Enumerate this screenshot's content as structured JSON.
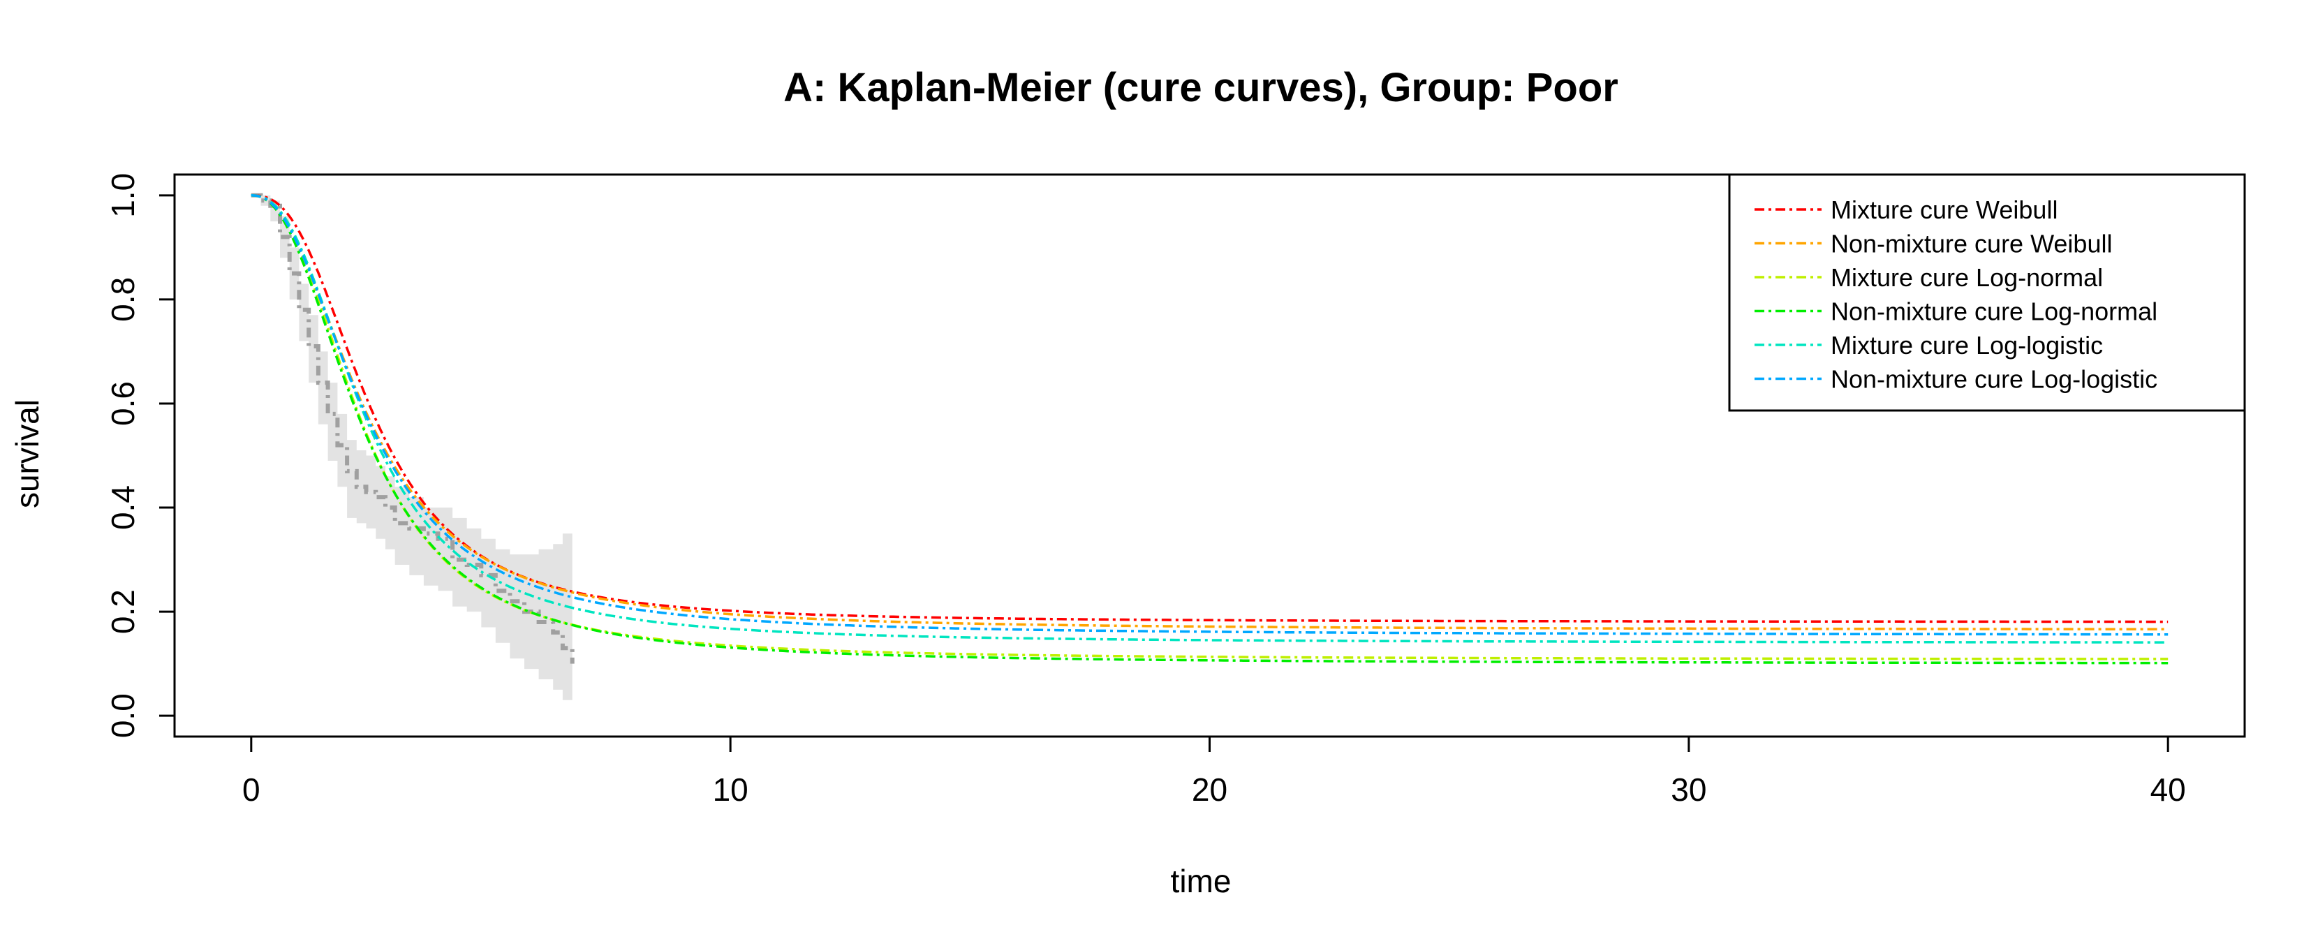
{
  "chart_data": {
    "type": "line",
    "title": "A: Kaplan-Meier (cure curves), Group: Poor",
    "xlabel": "time",
    "ylabel": "survival",
    "xlim": [
      -1.6,
      41.6
    ],
    "ylim": [
      -0.04,
      1.04
    ],
    "x_ticks": [
      0,
      10,
      20,
      30,
      40
    ],
    "y_ticks": [
      0.0,
      0.2,
      0.4,
      0.6,
      0.8,
      1.0
    ],
    "x_tick_labels": [
      "0",
      "10",
      "20",
      "30",
      "40"
    ],
    "y_tick_labels": [
      "0.0",
      "0.2",
      "0.4",
      "0.6",
      "0.8",
      "1.0"
    ],
    "grid": false,
    "legend_position": "top-right",
    "km_estimate": {
      "color": "#a0a0a0",
      "band_color": "#e3e3e3",
      "times": [
        0,
        0.2,
        0.4,
        0.6,
        0.8,
        1.0,
        1.2,
        1.4,
        1.6,
        1.8,
        2.0,
        2.2,
        2.4,
        2.6,
        2.8,
        3.0,
        3.3,
        3.6,
        3.9,
        4.2,
        4.5,
        4.8,
        5.1,
        5.4,
        5.7,
        6.0,
        6.3,
        6.5,
        6.7
      ],
      "survival": [
        1.0,
        0.99,
        0.98,
        0.92,
        0.85,
        0.78,
        0.71,
        0.64,
        0.58,
        0.52,
        0.47,
        0.44,
        0.43,
        0.42,
        0.4,
        0.37,
        0.36,
        0.35,
        0.34,
        0.3,
        0.29,
        0.27,
        0.24,
        0.22,
        0.2,
        0.18,
        0.16,
        0.13,
        0.1
      ],
      "lower": [
        1.0,
        0.98,
        0.95,
        0.88,
        0.8,
        0.72,
        0.64,
        0.56,
        0.49,
        0.44,
        0.38,
        0.37,
        0.36,
        0.34,
        0.32,
        0.29,
        0.27,
        0.25,
        0.24,
        0.21,
        0.2,
        0.17,
        0.14,
        0.11,
        0.09,
        0.07,
        0.05,
        0.03,
        0.02
      ],
      "upper": [
        1.0,
        1.0,
        0.99,
        0.96,
        0.9,
        0.83,
        0.77,
        0.7,
        0.64,
        0.58,
        0.53,
        0.51,
        0.5,
        0.48,
        0.46,
        0.44,
        0.42,
        0.4,
        0.4,
        0.38,
        0.36,
        0.34,
        0.32,
        0.31,
        0.31,
        0.32,
        0.33,
        0.35,
        0.37
      ]
    },
    "series": [
      {
        "name": "Mixture cure Weibull",
        "color": "#ff0000",
        "cure_fraction": 0.18,
        "median": 2.5,
        "shape": 2.6
      },
      {
        "name": "Non-mixture cure Weibull",
        "color": "#ffa500",
        "cure_fraction": 0.165,
        "median": 2.4,
        "shape": 2.3
      },
      {
        "name": "Mixture cure Log-normal",
        "color": "#bfef00",
        "cure_fraction": 0.108,
        "median": 2.35,
        "shape": 2.4
      },
      {
        "name": "Non-mixture cure Log-normal",
        "color": "#00ee00",
        "cure_fraction": 0.1,
        "median": 2.35,
        "shape": 2.3
      },
      {
        "name": "Mixture cure Log-logistic",
        "color": "#00e5c0",
        "cure_fraction": 0.14,
        "median": 2.4,
        "shape": 2.4
      },
      {
        "name": "Non-mixture cure Log-logistic",
        "color": "#00a8ff",
        "cure_fraction": 0.155,
        "median": 2.4,
        "shape": 2.3
      }
    ],
    "x_max_curve": 40
  }
}
